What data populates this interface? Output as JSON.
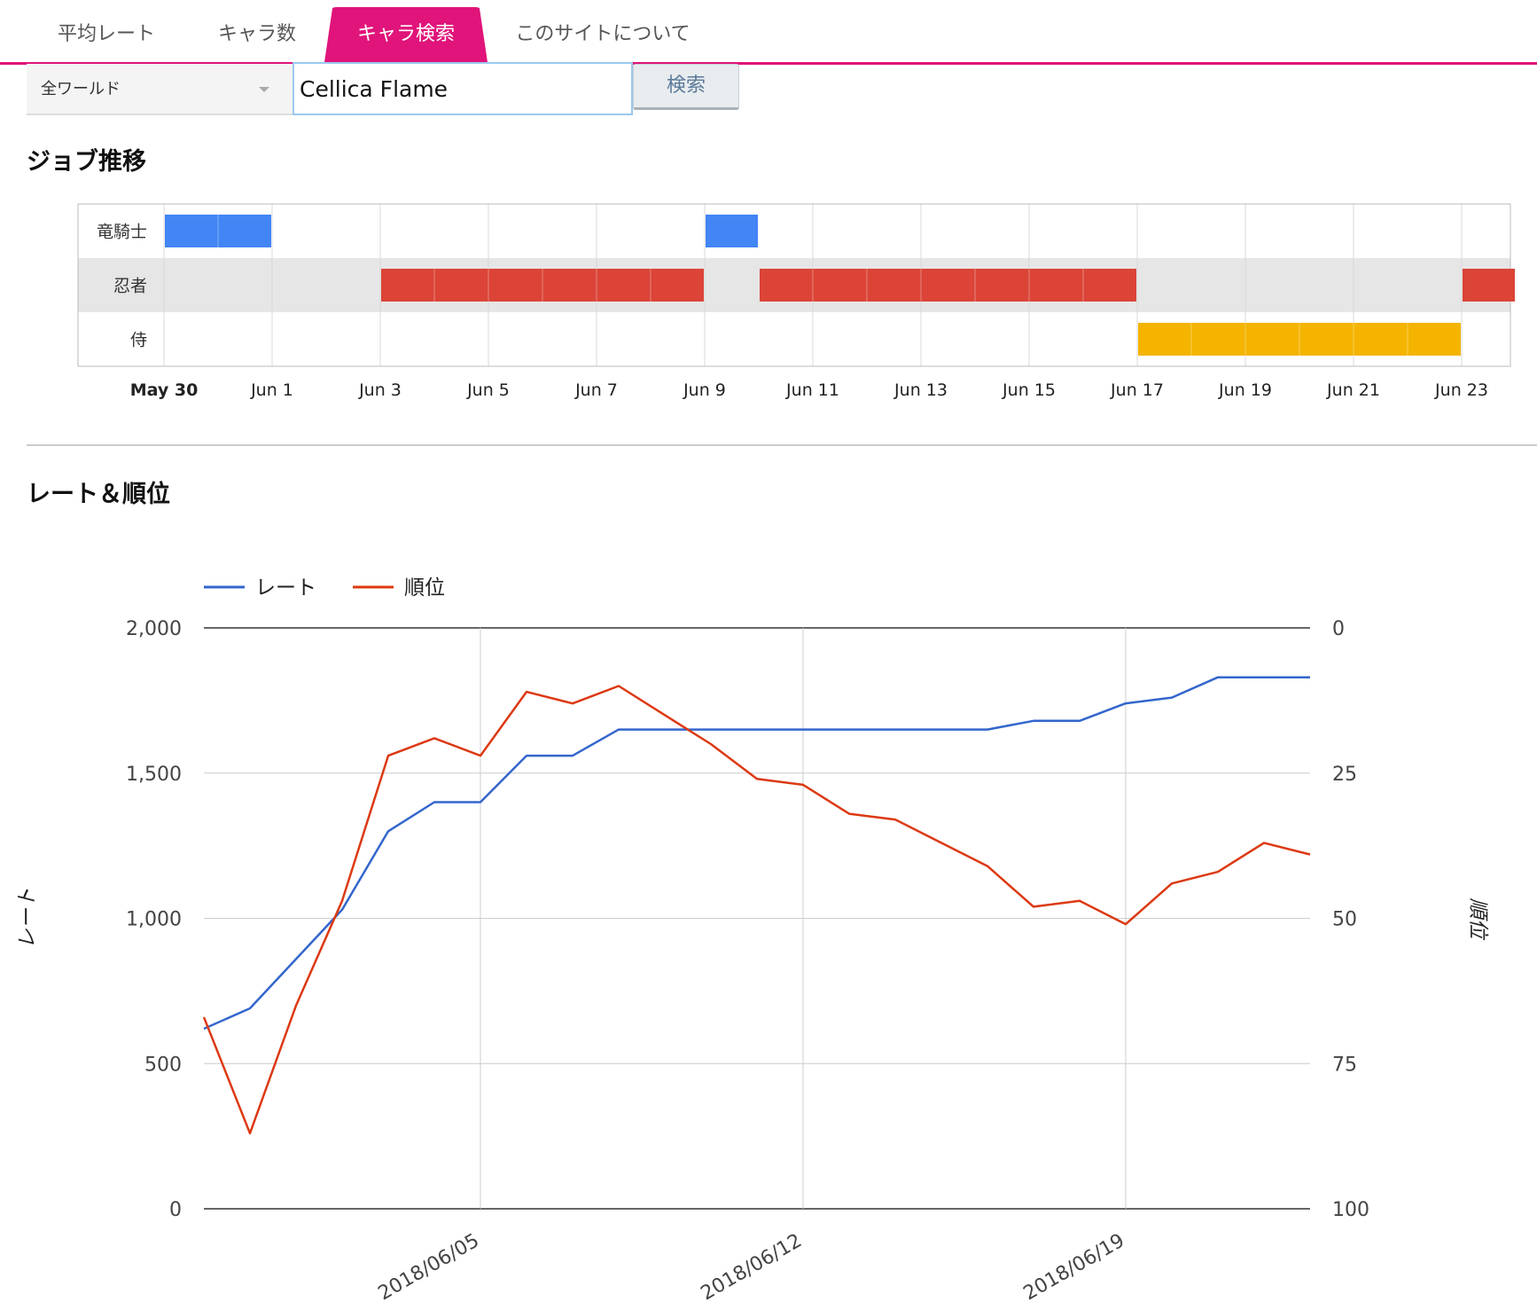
{
  "tabs": [
    {
      "label": "平均レート",
      "active": false
    },
    {
      "label": "キャラ数",
      "active": false
    },
    {
      "label": "キャラ検索",
      "active": true
    },
    {
      "label": "このサイトについて",
      "active": false
    }
  ],
  "search": {
    "world_select_value": "全ワールド",
    "input_value": "Cellica Flame",
    "button_label": "検索"
  },
  "sections": {
    "job_title": "ジョブ推移",
    "rate_title": "レート＆順位"
  },
  "job_timeline": {
    "rows": [
      {
        "label": "竜騎士",
        "color": "#4285f4",
        "bars": [
          [
            "May 30",
            "Jun 1"
          ],
          [
            "Jun 9",
            "Jun 10"
          ]
        ]
      },
      {
        "label": "忍者",
        "color": "#db4437",
        "bars": [
          [
            "Jun 3",
            "Jun 9"
          ],
          [
            "Jun 10",
            "Jun 17"
          ],
          [
            "Jun 23",
            "Jun 24"
          ]
        ]
      },
      {
        "label": "侍",
        "color": "#f4b400",
        "bars": [
          [
            "Jun 17",
            "Jun 23"
          ]
        ]
      }
    ],
    "ticks": [
      "May 30",
      "Jun 1",
      "Jun 3",
      "Jun 5",
      "Jun 7",
      "Jun 9",
      "Jun 11",
      "Jun 13",
      "Jun 15",
      "Jun 17",
      "Jun 19",
      "Jun 21",
      "Jun 23"
    ],
    "bold_tick": "May 30"
  },
  "chart_data": {
    "type": "line",
    "title": "",
    "x": [
      "2018/05/30",
      "2018/05/31",
      "2018/06/01",
      "2018/06/02",
      "2018/06/03",
      "2018/06/04",
      "2018/06/05",
      "2018/06/06",
      "2018/06/07",
      "2018/06/08",
      "2018/06/09",
      "2018/06/10",
      "2018/06/11",
      "2018/06/12",
      "2018/06/13",
      "2018/06/14",
      "2018/06/15",
      "2018/06/16",
      "2018/06/17",
      "2018/06/18",
      "2018/06/19",
      "2018/06/20",
      "2018/06/21",
      "2018/06/22",
      "2018/06/23"
    ],
    "x_tick_labels": [
      "2018/06/05",
      "2018/06/12",
      "2018/06/19"
    ],
    "series": [
      {
        "name": "レート",
        "axis": "left",
        "color": "#3366cc",
        "values": [
          620,
          690,
          860,
          1030,
          1300,
          1400,
          1400,
          1560,
          1560,
          1650,
          1650,
          1650,
          1650,
          1650,
          1650,
          1650,
          1650,
          1650,
          1680,
          1680,
          1740,
          1760,
          1830,
          1830,
          1830
        ]
      },
      {
        "name": "順位",
        "axis": "right",
        "color": "#dc3912",
        "values": [
          67,
          87,
          65,
          47,
          22,
          19,
          22,
          11,
          13,
          10,
          15,
          20,
          26,
          27,
          32,
          33,
          37,
          41,
          48,
          47,
          51,
          44,
          42,
          37,
          39
        ]
      }
    ],
    "xlabel": "",
    "ylabel_left": "レート",
    "ylabel_right": "順位",
    "ylim_left": [
      0,
      2000
    ],
    "left_ticks": [
      "0",
      "500",
      "1,000",
      "1,500",
      "2,000"
    ],
    "ylim_right": [
      100,
      0
    ],
    "right_ticks": [
      "0",
      "25",
      "50",
      "75",
      "100"
    ],
    "legend_position": "top-left",
    "grid": true
  }
}
